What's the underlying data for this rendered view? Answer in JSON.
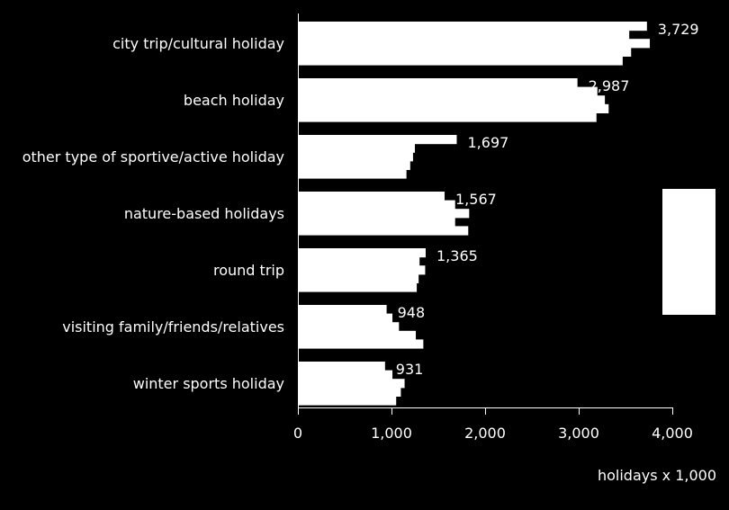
{
  "chart_data": {
    "type": "bar",
    "orientation": "horizontal",
    "categories": [
      "city trip/cultural holiday",
      "beach holiday",
      "other type of sportive/active holiday",
      "nature-based holidays",
      "round trip",
      "visiting family/friends/relatives",
      "winter sports holiday"
    ],
    "values": [
      3729,
      2987,
      1697,
      1567,
      1365,
      948,
      931
    ],
    "value_labels": [
      "3,729",
      "2,987",
      "1,697",
      "1,567",
      "1,365",
      "948",
      "931"
    ],
    "segments": [
      [
        3729,
        3540,
        3760,
        3560,
        3470
      ],
      [
        2987,
        3200,
        3280,
        3320,
        3190
      ],
      [
        1697,
        1250,
        1230,
        1200,
        1160
      ],
      [
        1567,
        1680,
        1830,
        1680,
        1820
      ],
      [
        1365,
        1300,
        1360,
        1290,
        1270
      ],
      [
        948,
        1010,
        1080,
        1260,
        1340
      ],
      [
        931,
        1010,
        1140,
        1100,
        1050
      ]
    ],
    "xlim": [
      0,
      4000
    ],
    "xticks": [
      0,
      1000,
      2000,
      3000,
      4000
    ],
    "xtick_labels": [
      "0",
      "1,000",
      "2,000",
      "3,000",
      "4,000"
    ],
    "unit_label": "holidays x 1,000",
    "grid": false,
    "colors": {
      "background": "#000000",
      "bar": "#ffffff",
      "text": "#ffffff",
      "axis": "#ffffff"
    }
  }
}
